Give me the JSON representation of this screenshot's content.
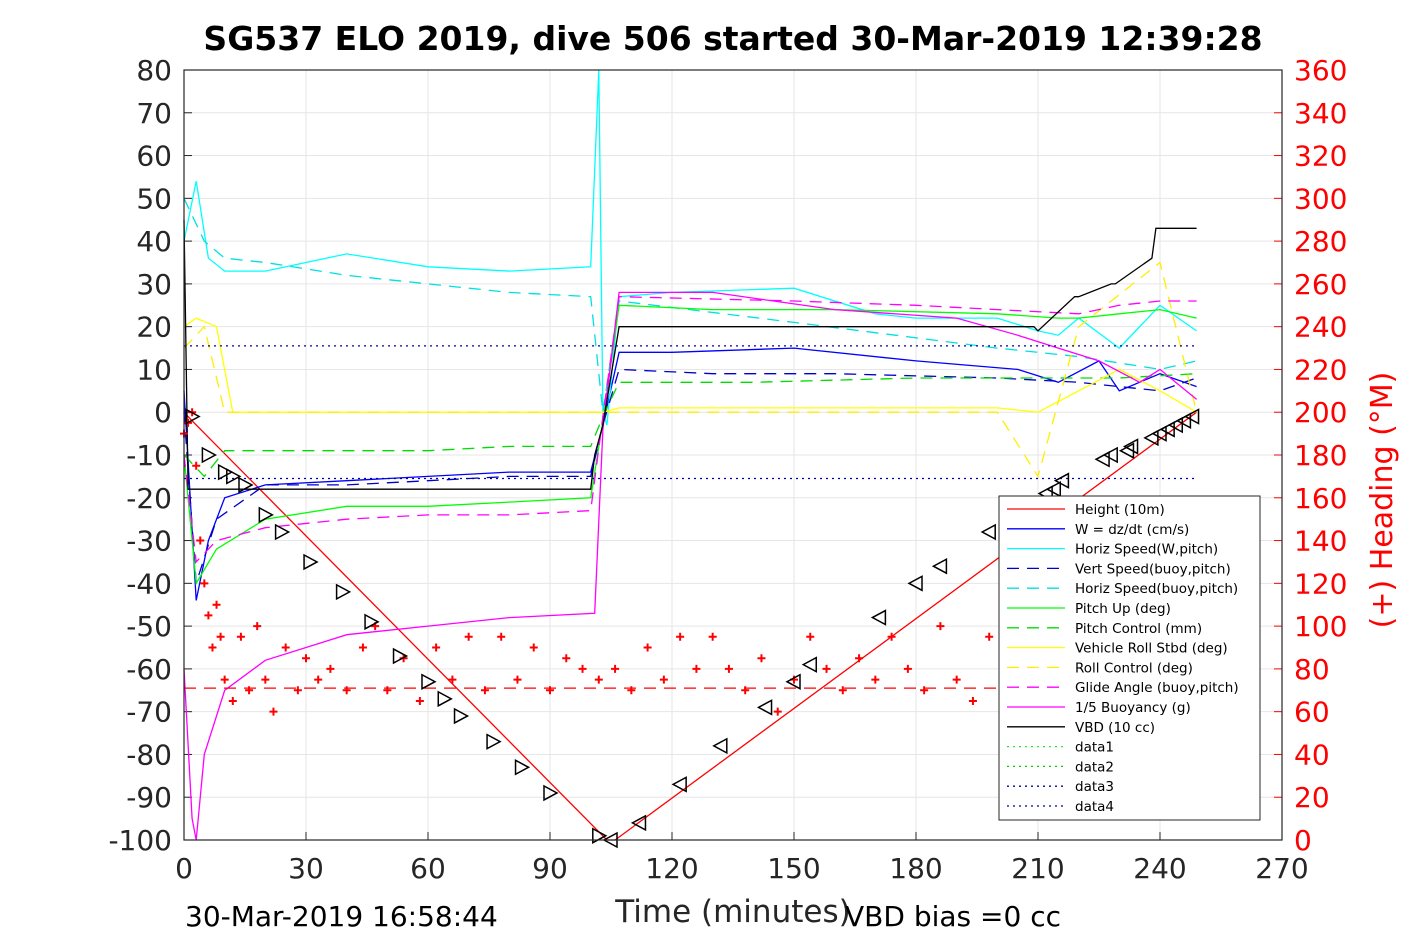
{
  "chart_data": {
    "type": "line",
    "title": "SG537 ELO 2019, dive 506 started 30-Mar-2019 12:39:28",
    "xlabel": "Time (minutes)",
    "ylabel_right": "(+) Heading (°M)",
    "xlim": [
      0,
      270
    ],
    "ylim": [
      -100,
      80
    ],
    "ylim_right": [
      0,
      360
    ],
    "xticks": [
      "0",
      "30",
      "60",
      "90",
      "120",
      "150",
      "180",
      "210",
      "240",
      "270"
    ],
    "yticks": [
      "80",
      "70",
      "60",
      "50",
      "40",
      "30",
      "20",
      "10",
      "0",
      "-10",
      "-20",
      "-30",
      "-40",
      "-50",
      "-60",
      "-70",
      "-80",
      "-90",
      "-100"
    ],
    "yticks_right": [
      "360",
      "340",
      "320",
      "300",
      "280",
      "260",
      "240",
      "220",
      "200",
      "180",
      "160",
      "140",
      "120",
      "100",
      "80",
      "60",
      "40",
      "20",
      "0"
    ],
    "grid": true,
    "legend_position": "lower-right",
    "footer_left": "30-Mar-2019 16:58:44",
    "footer_right": "VBD bias =0 cc",
    "series": [
      {
        "name": "Height (10m)",
        "color": "#ff0000",
        "style": "solid",
        "x": [
          0,
          2,
          104,
          106,
          249
        ],
        "y": [
          0,
          -2,
          -100,
          -100,
          0
        ]
      },
      {
        "name": "W = dz/dt (cm/s)",
        "color": "#0000ff",
        "style": "solid",
        "x": [
          0,
          3,
          6,
          10,
          20,
          40,
          60,
          80,
          100,
          103,
          107,
          120,
          150,
          180,
          205,
          215,
          225,
          230,
          240,
          249
        ],
        "y": [
          5,
          -44,
          -30,
          -20,
          -17,
          -16,
          -15,
          -14,
          -14,
          -3,
          14,
          14,
          15,
          12,
          10,
          7,
          12,
          5,
          9,
          6
        ]
      },
      {
        "name": "Horiz Speed(W,pitch)",
        "color": "#00ffff",
        "style": "solid",
        "x": [
          0,
          3,
          6,
          10,
          20,
          40,
          60,
          80,
          100,
          102,
          103,
          104,
          107,
          120,
          150,
          170,
          180,
          200,
          210,
          215,
          220,
          230,
          240,
          249
        ],
        "y": [
          40,
          54,
          36,
          33,
          33,
          37,
          34,
          33,
          34,
          80,
          0,
          -3,
          27,
          28,
          29,
          23,
          22,
          22,
          19,
          18,
          22,
          15,
          25,
          19
        ]
      },
      {
        "name": "Vert Speed(buoy,pitch)",
        "color": "#0000c8",
        "style": "dashed",
        "x": [
          0,
          3,
          8,
          20,
          40,
          60,
          80,
          100,
          103,
          107,
          130,
          160,
          200,
          220,
          230,
          240,
          249
        ],
        "y": [
          0,
          -40,
          -25,
          -17,
          -17,
          -16,
          -15,
          -15,
          -3,
          10,
          9,
          9,
          8,
          7,
          6,
          5,
          8
        ]
      },
      {
        "name": "Horiz Speed(buoy,pitch)",
        "color": "#00e0e0",
        "style": "dashed",
        "x": [
          0,
          5,
          10,
          20,
          40,
          60,
          80,
          100,
          103,
          107,
          150,
          200,
          220,
          240,
          249
        ],
        "y": [
          50,
          40,
          36,
          35,
          32,
          30,
          28,
          27,
          0,
          26,
          21,
          15,
          13,
          10,
          12
        ]
      },
      {
        "name": "Pitch Up (deg)",
        "color": "#00ff00",
        "style": "solid",
        "x": [
          0,
          3,
          8,
          20,
          40,
          60,
          80,
          100,
          103,
          107,
          130,
          160,
          200,
          215,
          220,
          230,
          240,
          249
        ],
        "y": [
          -10,
          -40,
          -32,
          -25,
          -22,
          -22,
          -21,
          -20,
          -2,
          25,
          24,
          24,
          23,
          22,
          22,
          23,
          24,
          22
        ]
      },
      {
        "name": "Pitch Control (mm)",
        "color": "#00dd00",
        "style": "dashed",
        "x": [
          0,
          5,
          10,
          20,
          40,
          60,
          80,
          100,
          103,
          107,
          140,
          180,
          210,
          230,
          249
        ],
        "y": [
          -10,
          -15,
          -9,
          -9,
          -9,
          -9,
          -8,
          -8,
          -1,
          7,
          7,
          8,
          8,
          8,
          9
        ]
      },
      {
        "name": "Vehicle Roll Stbd (deg)",
        "color": "#ffff00",
        "style": "solid",
        "x": [
          0,
          3,
          8,
          12,
          20,
          40,
          60,
          80,
          100,
          103,
          107,
          150,
          200,
          210,
          220,
          230,
          240,
          249
        ],
        "y": [
          20,
          22,
          20,
          0,
          0,
          0,
          0,
          0,
          0,
          0,
          1,
          1,
          1,
          0,
          5,
          10,
          5,
          0
        ]
      },
      {
        "name": "Roll Control (deg)",
        "color": "#ffee00",
        "style": "dashed",
        "x": [
          0,
          5,
          10,
          20,
          60,
          100,
          103,
          107,
          150,
          200,
          210,
          220,
          240,
          249
        ],
        "y": [
          15,
          20,
          0,
          0,
          0,
          0,
          0,
          0,
          0,
          0,
          -15,
          20,
          35,
          0
        ]
      },
      {
        "name": "Glide Angle (buoy,pitch)",
        "color": "#ff00ff",
        "style": "dashed",
        "x": [
          0,
          3,
          8,
          20,
          40,
          60,
          80,
          100,
          103,
          107,
          150,
          180,
          200,
          220,
          230,
          240,
          249
        ],
        "y": [
          -10,
          -35,
          -30,
          -27,
          -25,
          -24,
          -24,
          -23,
          -1,
          27,
          26,
          25,
          24,
          23,
          25,
          26,
          26
        ]
      },
      {
        "name": "1/5 Buoyancy (g)",
        "color": "#ff00ff",
        "style": "solid",
        "x": [
          0,
          2,
          3,
          5,
          10,
          20,
          40,
          60,
          80,
          101,
          103,
          107,
          130,
          160,
          190,
          205,
          215,
          225,
          235,
          240,
          249
        ],
        "y": [
          -60,
          -95,
          -100,
          -80,
          -65,
          -58,
          -52,
          -50,
          -48,
          -47,
          -4,
          28,
          28,
          24,
          22,
          18,
          15,
          12,
          7,
          10,
          3
        ]
      },
      {
        "name": "VBD (10 cc)",
        "color": "#000000",
        "style": "solid",
        "x": [
          0,
          1,
          2,
          3,
          100,
          101,
          103,
          107,
          209,
          210,
          219,
          220,
          228,
          229,
          238,
          239,
          249
        ],
        "y": [
          45,
          -18,
          -18,
          -18,
          -18,
          -10,
          -3,
          20,
          20,
          19,
          27,
          27,
          30,
          30,
          36,
          43,
          43
        ]
      },
      {
        "name": "data1",
        "color": "#33dd33",
        "style": "dotted",
        "x": [],
        "y": []
      },
      {
        "name": "data2",
        "color": "#00cc00",
        "style": "dotted",
        "x": [],
        "y": []
      },
      {
        "name": "data3",
        "color": "#0000a0",
        "style": "dotted",
        "x": [
          0,
          249
        ],
        "y": [
          15.5,
          15.5
        ]
      },
      {
        "name": "data4",
        "color": "#0000a0",
        "style": "dotted",
        "x": [
          0,
          249
        ],
        "y": [
          -15.5,
          -15.5
        ]
      },
      {
        "name": "",
        "color": "#ff0000",
        "style": "dashed",
        "x": [
          0,
          249
        ],
        "y": [
          -64.5,
          -64.5
        ]
      }
    ],
    "heading": {
      "color": "#ff0000",
      "marker": "+",
      "x": [
        0,
        1,
        2,
        3,
        4,
        5,
        6,
        7,
        8,
        9,
        10,
        12,
        14,
        16,
        18,
        20,
        22,
        25,
        28,
        30,
        33,
        36,
        40,
        44,
        47,
        50,
        54,
        58,
        62,
        66,
        70,
        74,
        78,
        82,
        86,
        90,
        94,
        98,
        102,
        106,
        110,
        114,
        118,
        122,
        126,
        130,
        134,
        138,
        142,
        146,
        150,
        154,
        158,
        162,
        166,
        170,
        174,
        178,
        182,
        186,
        190,
        194,
        198,
        202,
        206,
        210
      ],
      "y": [
        190,
        195,
        200,
        175,
        140,
        120,
        105,
        90,
        110,
        95,
        75,
        65,
        95,
        70,
        100,
        75,
        60,
        90,
        70,
        85,
        75,
        80,
        70,
        90,
        100,
        70,
        85,
        65,
        90,
        75,
        95,
        70,
        95,
        75,
        90,
        70,
        85,
        80,
        75,
        80,
        70,
        90,
        75,
        95,
        80,
        95,
        80,
        70,
        85,
        60,
        75,
        95,
        80,
        70,
        85,
        75,
        95,
        80,
        70,
        100,
        75,
        65,
        95,
        80,
        70,
        65
      ]
    },
    "markers": {
      "color": "#000000",
      "shape": "triangle",
      "x": [
        2,
        6,
        10,
        12,
        15,
        20,
        24,
        31,
        39,
        46,
        53,
        60,
        64,
        68,
        76,
        83,
        90,
        102,
        105,
        112,
        122,
        132,
        143,
        150,
        154,
        171,
        180,
        186,
        198,
        212,
        214,
        216,
        226,
        228,
        232,
        233,
        238,
        240,
        242,
        244,
        246,
        248
      ],
      "y": [
        -1,
        -10,
        -14,
        -15,
        -17,
        -24,
        -28,
        -35,
        -42,
        -49,
        -57,
        -63,
        -67,
        -71,
        -77,
        -83,
        -89,
        -99,
        -100,
        -96,
        -87,
        -78,
        -69,
        -63,
        -59,
        -48,
        -40,
        -36,
        -28,
        -19,
        -18,
        -16,
        -11,
        -10,
        -9,
        -8,
        -6,
        -5,
        -4,
        -3,
        -2,
        -1
      ]
    }
  }
}
